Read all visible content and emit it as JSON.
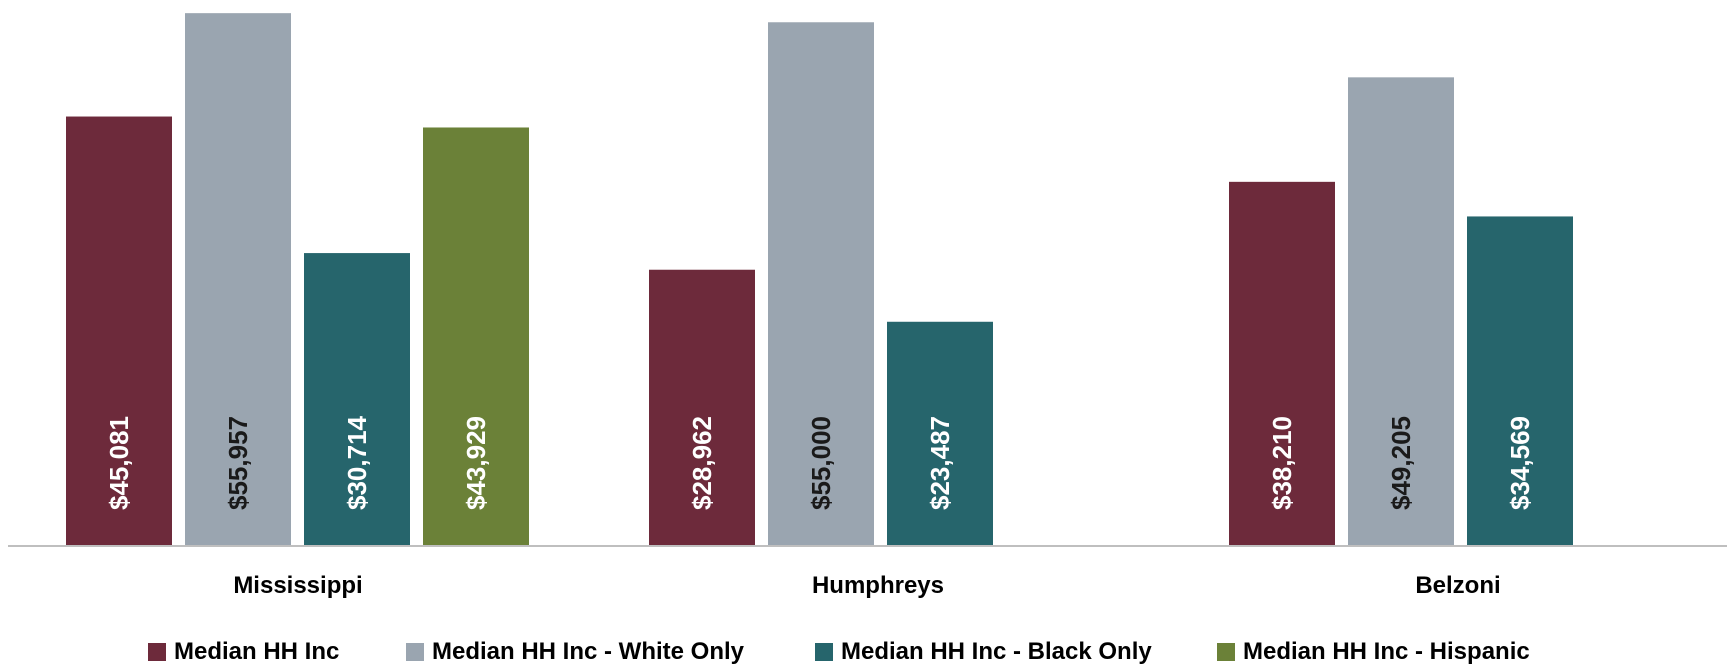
{
  "chart_data": {
    "type": "bar",
    "categories": [
      "Mississippi",
      "Humphreys",
      "Belzoni"
    ],
    "series": [
      {
        "name": "Median HH Inc",
        "color": "#6d2a3b",
        "label_color": "#ffffff",
        "values": [
          45081,
          28962,
          38210
        ],
        "labels": [
          "$45,081",
          "$28,962",
          "$38,210"
        ]
      },
      {
        "name": "Median HH Inc - White Only",
        "color": "#9aa5b0",
        "label_color": "#1a1a1a",
        "values": [
          55957,
          55000,
          49205
        ],
        "labels": [
          "$55,957",
          "$55,000",
          "$49,205"
        ]
      },
      {
        "name": "Median HH Inc - Black Only",
        "color": "#26656c",
        "label_color": "#ffffff",
        "values": [
          30714,
          23487,
          34569
        ],
        "labels": [
          "$30,714",
          "$23,487",
          "$34,569"
        ]
      },
      {
        "name": "Median HH Inc - Hispanic",
        "color": "#6b8138",
        "label_color": "#ffffff",
        "values": [
          43929,
          null,
          null
        ],
        "labels": [
          "$43,929",
          "",
          ""
        ]
      }
    ],
    "ylim": [
      0,
      56500
    ],
    "grid": false,
    "legend_position": "bottom"
  }
}
